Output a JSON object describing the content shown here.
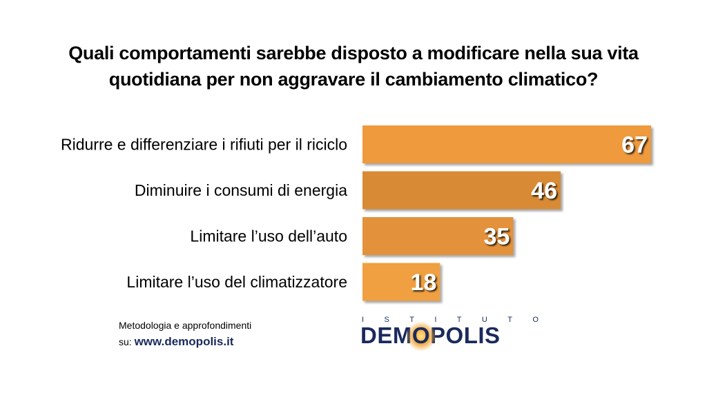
{
  "title_lines": [
    "Quali comportamenti sarebbe disposto a modificare nella sua vita",
    "quotidiana per non aggravare il cambiamento climatico?"
  ],
  "chart_data": {
    "type": "bar",
    "orientation": "horizontal",
    "title": "Quali comportamenti sarebbe disposto a modificare nella sua vita quotidiana per non aggravare il cambiamento climatico?",
    "categories": [
      "Ridurre e differenziare i rifiuti per il riciclo",
      "Diminuire i consumi di energia",
      "Limitare l’uso dell’auto",
      "Limitare l’uso del climatizzatore"
    ],
    "values": [
      67,
      46,
      35,
      18
    ],
    "bar_colors": [
      "#EE9A3C",
      "#D98A34",
      "#E3923A",
      "#F0A040"
    ],
    "value_label_color": "#FFFFFF",
    "xlim": [
      0,
      67
    ],
    "grid": false,
    "legend": "none"
  },
  "footer": {
    "line1": "Metodologia e approfondimenti",
    "prefix": "su:",
    "link": "www.demopolis.it"
  },
  "logo": {
    "top_letters": [
      "I",
      "S",
      "T",
      "I",
      "T",
      "U",
      "T",
      "O"
    ],
    "main_before": "DEM",
    "main_o": "O",
    "main_after": "POLIS",
    "color": "#1A2A5C"
  }
}
